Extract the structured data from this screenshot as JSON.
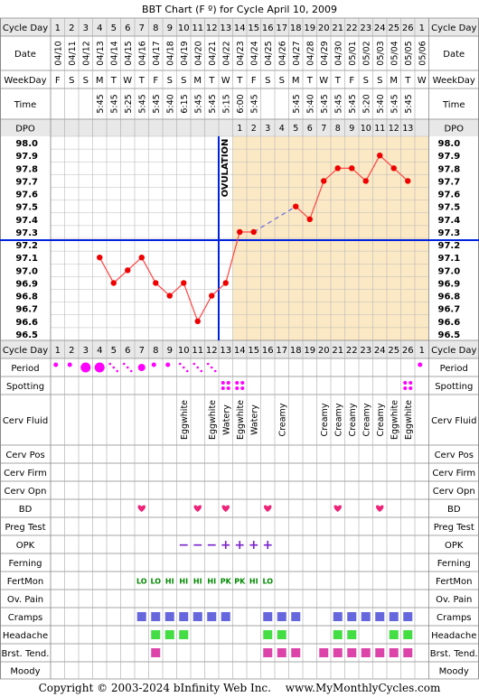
{
  "page": {
    "title": "BBT Chart (F º) for Cycle April 10, 2009",
    "copyright": "Copyright © 2003-2024 bInfinity Web Inc.",
    "site": "www.MyMonthlyCycles.com"
  },
  "chart_data": {
    "type": "line",
    "title": "BBT Chart (F º) for Cycle April 10, 2009",
    "ylim": [
      96.5,
      98.0
    ],
    "y_ticks": [
      "98.0",
      "97.9",
      "97.8",
      "97.7",
      "97.6",
      "97.5",
      "97.4",
      "97.3",
      "97.2",
      "97.1",
      "97.0",
      "96.9",
      "96.8",
      "96.7",
      "96.6",
      "96.5"
    ],
    "coverline": 97.2,
    "ovulation_day": 13,
    "ovulation_label": "OVULATION",
    "cycle_days": [
      "1",
      "2",
      "3",
      "4",
      "5",
      "6",
      "7",
      "8",
      "9",
      "10",
      "11",
      "12",
      "13",
      "14",
      "15",
      "16",
      "17",
      "18",
      "19",
      "20",
      "21",
      "22",
      "23",
      "24",
      "25",
      "26",
      "1"
    ],
    "dates": [
      "04/10",
      "04/11",
      "04/12",
      "04/13",
      "04/14",
      "04/15",
      "04/16",
      "04/17",
      "04/18",
      "04/19",
      "04/20",
      "04/21",
      "04/22",
      "04/23",
      "04/24",
      "04/25",
      "04/26",
      "04/27",
      "04/28",
      "04/29",
      "04/30",
      "05/01",
      "05/02",
      "05/03",
      "05/04",
      "05/05",
      "05/06"
    ],
    "weekdays": [
      "F",
      "S",
      "S",
      "M",
      "T",
      "W",
      "T",
      "F",
      "S",
      "S",
      "M",
      "T",
      "W",
      "T",
      "F",
      "S",
      "S",
      "M",
      "T",
      "W",
      "T",
      "F",
      "S",
      "S",
      "M",
      "T",
      "W"
    ],
    "times": [
      "",
      "",
      "",
      "5:45",
      "5:45",
      "5:25",
      "5:45",
      "5:45",
      "5:40",
      "6:15",
      "5:45",
      "5:45",
      "5:15",
      "6:00",
      "5:45",
      "",
      "",
      "5:45",
      "5:40",
      "5:45",
      "5:45",
      "5:45",
      "5:20",
      "5:40",
      "5:45",
      "5:45",
      ""
    ],
    "dpo": [
      "",
      "",
      "",
      "",
      "",
      "",
      "",
      "",
      "",
      "",
      "",
      "",
      "",
      "1",
      "2",
      "3",
      "4",
      "5",
      "6",
      "7",
      "8",
      "9",
      "10",
      "11",
      "12",
      "13",
      ""
    ],
    "temps": [
      null,
      null,
      null,
      97.1,
      96.9,
      97.0,
      97.1,
      96.9,
      96.8,
      96.9,
      96.6,
      96.8,
      96.9,
      97.3,
      97.3,
      null,
      null,
      97.5,
      97.4,
      97.7,
      97.8,
      97.8,
      97.7,
      97.9,
      97.8,
      97.7,
      null
    ],
    "period": [
      "dot",
      "dot",
      "big",
      "big",
      "spotting",
      "spotting",
      "medium",
      "dot",
      "dot",
      "spotting",
      "spotting",
      "spotting",
      "",
      "",
      "",
      "",
      "",
      "",
      "",
      "",
      "",
      "",
      "",
      "",
      "",
      "",
      "dot"
    ],
    "spotting": [
      13,
      14,
      26
    ],
    "cerv_fluid": [
      "",
      "",
      "",
      "",
      "",
      "",
      "",
      "",
      "",
      "Eggwhite",
      "",
      "Eggwhite",
      "Watery",
      "Eggwhite",
      "Watery",
      "",
      "Creamy",
      "",
      "",
      "Creamy",
      "Creamy",
      "Creamy",
      "Creamy",
      "Creamy",
      "Eggwhite",
      "Eggwhite",
      ""
    ],
    "bd": [
      7,
      11,
      13,
      16,
      21,
      24
    ],
    "opk": [
      "",
      "",
      "",
      "",
      "",
      "",
      "",
      "",
      "",
      "−",
      "−",
      "−",
      "+",
      "+",
      "+",
      "+",
      "",
      "",
      "",
      "",
      "",
      "",
      "",
      "",
      "",
      "",
      ""
    ],
    "fertmon": [
      "",
      "",
      "",
      "",
      "",
      "",
      "LO",
      "LO",
      "HI",
      "HI",
      "HI",
      "HI",
      "PK",
      "PK",
      "HI",
      "LO",
      "",
      "",
      "",
      "",
      "",
      "",
      "",
      "",
      "",
      "",
      ""
    ],
    "cramps": [
      7,
      8,
      9,
      10,
      11,
      12,
      13,
      16,
      17,
      18,
      21,
      22,
      23,
      24,
      25,
      26
    ],
    "headache": [
      8,
      9,
      10,
      16,
      17,
      21,
      22,
      25,
      26
    ],
    "breast_tenderness": [
      8,
      16,
      17,
      18,
      20,
      21,
      22,
      23,
      24,
      25,
      26
    ],
    "colors": {
      "luteal_bg": "#fbe8c4",
      "grid": "#bbbbbb",
      "temp_line": "#ff4444",
      "temp_point": "#ee0000",
      "dashed_line": "#6666dd",
      "coverline": "#0022dd",
      "period_dot": "#ff00ff",
      "fertmon_text": "#008800",
      "opk": "#7722cc",
      "bd_heart": "#ee2277",
      "cramps_sq": "#6666dd",
      "headache_sq": "#44dd44",
      "tender_sq": "#dd44aa"
    }
  },
  "rows": {
    "cycle_day": "Cycle Day",
    "date": "Date",
    "weekday": "WeekDay",
    "time": "Time",
    "dpo": "DPO",
    "period": "Period",
    "spotting": "Spotting",
    "cerv_fluid": "Cerv Fluid",
    "cerv_pos": "Cerv Pos",
    "cerv_firm": "Cerv Firm",
    "cerv_opn": "Cerv Opn",
    "bd": "BD",
    "preg_test": "Preg Test",
    "opk": "OPK",
    "ferning": "Ferning",
    "fertmon": "FertMon",
    "ov_pain": "Ov. Pain",
    "cramps": "Cramps",
    "headache": "Headache",
    "brst_tend": "Brst. Tend.",
    "moody": "Moody"
  }
}
